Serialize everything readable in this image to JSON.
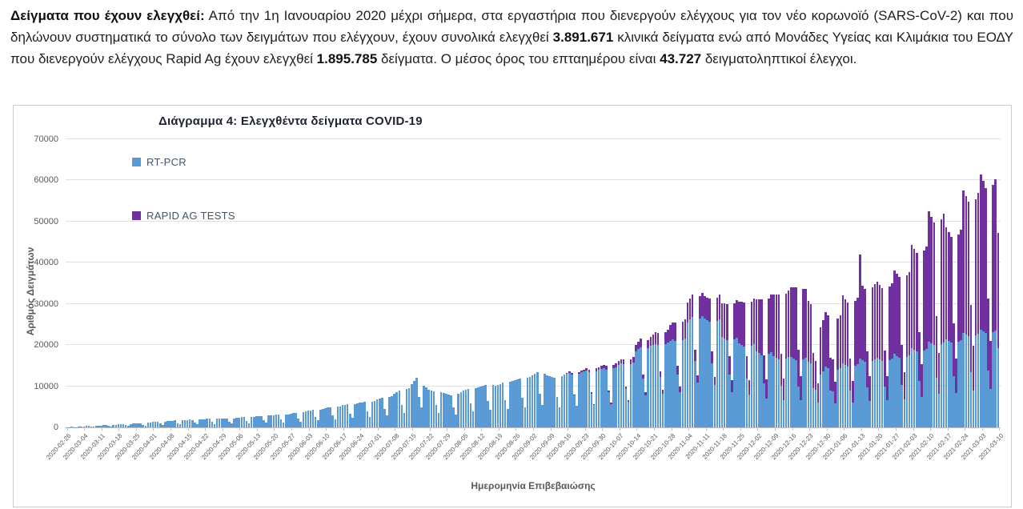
{
  "intro": {
    "lead_bold": "Δείγματα που έχουν ελεγχθεί:",
    "part1": " Από την 1η Ιανουαρίου 2020 μέχρι σήμερα, στα εργαστήρια που διενεργούν ελέγχους για τον νέο κορωνοϊό (SARS-CoV-2) και που δηλώνουν συστηματικά το σύνολο των δειγμάτων που ελέγχουν, έχουν συνολικά ελεγχθεί ",
    "total_rt_pcr": "3.891.671",
    "part2": " κλινικά δείγματα ενώ από Μονάδες Υγείας και Κλιμάκια του ΕΟΔΥ που διενεργούν ελέγχους Rapid Ag έχουν ελεγχθεί ",
    "total_rapid": "1.895.785",
    "part3": " δείγματα. Ο μέσος όρος του επταημέρου είναι ",
    "avg_7day": "43.727",
    "part4": " δειγματοληπτικοί έλεγχοι."
  },
  "chart_data": {
    "type": "bar",
    "stacked": true,
    "bar_period": "daily",
    "title": "Διάγραμμα 4: Ελεγχθέντα δείγματα COVID-19",
    "xlabel": "Ημερομηνία Επιβεβαιώσης",
    "ylabel": "Αριθμός Δειγμάτων",
    "ylim": [
      0,
      70000
    ],
    "y_ticks": [
      0,
      10000,
      20000,
      30000,
      40000,
      50000,
      60000,
      70000
    ],
    "grid": "horizontal",
    "legend_position": "inside-top-left",
    "x_range": [
      "2020-02-26",
      "2021-03-10"
    ],
    "x_tick_labels": [
      "2020-02-26",
      "2020-03-04",
      "2020-03-11",
      "2020-03-18",
      "2020-03-25",
      "2020-04-01",
      "2020-04-08",
      "2020-04-15",
      "2020-04-22",
      "2020-04-29",
      "2020-05-06",
      "2020-05-13",
      "2020-05-20",
      "2020-05-27",
      "2020-06-03",
      "2020-06-10",
      "2020-06-17",
      "2020-06-24",
      "2020-07-01",
      "2020-07-08",
      "2020-07-15",
      "2020-07-22",
      "2020-07-29",
      "2020-08-05",
      "2020-08-12",
      "2020-08-19",
      "2020-08-26",
      "2020-09-02",
      "2020-09-09",
      "2020-09-16",
      "2020-09-23",
      "2020-09-30",
      "2020-10-07",
      "2020-10-14",
      "2020-10-21",
      "2020-10-28",
      "2020-11-04",
      "2020-11-11",
      "2020-11-18",
      "2020-11-25",
      "2020-12-02",
      "2020-12-09",
      "2020-12-16",
      "2020-12-23",
      "2020-12-30",
      "2021-01-06",
      "2021-01-13",
      "2021-01-20",
      "2021-01-27",
      "2021-02-03",
      "2021-02-10",
      "2021-02-17",
      "2021-02-24",
      "2021-03-03",
      "2021-03-10"
    ],
    "colors": {
      "rt_pcr": "#5B9BD5",
      "rapid": "#7030A0"
    },
    "series": [
      {
        "name": "RT-PCR",
        "color": "#5B9BD5",
        "values": [
          60,
          80,
          120,
          90,
          70,
          150,
          200,
          250,
          300,
          350,
          220,
          160,
          380,
          420,
          450,
          500,
          550,
          350,
          250,
          600,
          650,
          700,
          750,
          800,
          500,
          350,
          850,
          900,
          950,
          1000,
          1050,
          650,
          450,
          1100,
          1150,
          1300,
          1350,
          1400,
          900,
          600,
          1450,
          1500,
          1600,
          1650,
          1700,
          1050,
          700,
          1750,
          1800,
          1850,
          1900,
          1800,
          1100,
          750,
          1900,
          1950,
          2000,
          2050,
          2100,
          1300,
          850,
          2100,
          2150,
          2100,
          2150,
          2200,
          1350,
          900,
          2200,
          2250,
          2400,
          2450,
          2500,
          1550,
          1000,
          2550,
          2600,
          2700,
          2750,
          2800,
          1700,
          1150,
          2850,
          2900,
          3000,
          3050,
          3100,
          1900,
          1250,
          3150,
          3200,
          3400,
          3500,
          3600,
          2200,
          1450,
          3700,
          3800,
          4000,
          4100,
          4200,
          2600,
          1700,
          4300,
          4400,
          4700,
          4800,
          4900,
          3000,
          2000,
          5000,
          5100,
          5400,
          5500,
          5600,
          3400,
          2300,
          5700,
          5800,
          6000,
          6100,
          6200,
          3800,
          2500,
          6300,
          6400,
          6800,
          7000,
          7200,
          4400,
          2900,
          7400,
          7600,
          8200,
          8600,
          9000,
          5500,
          3600,
          9300,
          9600,
          10500,
          11200,
          12100,
          7400,
          4900,
          10200,
          9800,
          9200,
          9000,
          8800,
          5400,
          3600,
          8600,
          8400,
          8200,
          8000,
          7800,
          4800,
          3200,
          8200,
          8600,
          9000,
          9200,
          9400,
          5800,
          3800,
          9600,
          9800,
          10000,
          10200,
          10400,
          6400,
          4200,
          10300,
          10200,
          10400,
          10600,
          10800,
          6600,
          4400,
          11000,
          11200,
          11400,
          11600,
          11800,
          7200,
          4800,
          12000,
          12200,
          12600,
          13000,
          13400,
          8200,
          5400,
          13000,
          12600,
          12400,
          12200,
          12000,
          7400,
          4900,
          12400,
          12800,
          13000,
          13200,
          12800,
          7800,
          5200,
          13000,
          13400,
          13600,
          13800,
          13500,
          8200,
          5400,
          13700,
          14000,
          14200,
          14400,
          14100,
          8600,
          5700,
          14300,
          14600,
          15200,
          15500,
          15300,
          9300,
          6200,
          15400,
          15800,
          18500,
          19000,
          19500,
          11800,
          7800,
          19200,
          19800,
          20000,
          20300,
          20000,
          12200,
          8100,
          20200,
          20600,
          21000,
          21300,
          21000,
          12800,
          8500,
          21200,
          21600,
          25500,
          26200,
          26800,
          16200,
          10800,
          26400,
          27000,
          26400,
          26000,
          25600,
          15600,
          10400,
          25800,
          26200,
          22000,
          21600,
          21200,
          12900,
          8600,
          21400,
          21800,
          20400,
          20000,
          19600,
          11900,
          7900,
          19800,
          20200,
          18400,
          18000,
          17600,
          10700,
          7100,
          17800,
          18200,
          17400,
          17000,
          16600,
          10100,
          6700,
          16800,
          17200,
          17200,
          16800,
          16400,
          10000,
          6600,
          16600,
          17000,
          16000,
          15600,
          9500,
          9200,
          6100,
          12800,
          13600,
          14800,
          14400,
          9000,
          8800,
          5900,
          14000,
          14400,
          15600,
          15200,
          14800,
          9000,
          6000,
          15000,
          15400,
          16800,
          16400,
          16000,
          9700,
          6500,
          16200,
          16600,
          17000,
          16600,
          16200,
          9900,
          6600,
          16400,
          16800,
          17800,
          17400,
          17000,
          10300,
          6900,
          17200,
          17600,
          19200,
          18800,
          18400,
          11200,
          7400,
          18600,
          19000,
          20800,
          20400,
          20000,
          12100,
          8100,
          20200,
          20600,
          21400,
          21000,
          20600,
          12500,
          8300,
          20800,
          21200,
          23000,
          22600,
          22200,
          13500,
          9000,
          22400,
          22800,
          23800,
          23400,
          23000,
          13900,
          9300,
          23200,
          23600,
          19300
        ]
      },
      {
        "name": "RAPID AG TESTS",
        "color": "#7030A0",
        "values": [
          0,
          0,
          0,
          0,
          0,
          0,
          0,
          0,
          0,
          0,
          0,
          0,
          0,
          0,
          0,
          0,
          0,
          0,
          0,
          0,
          0,
          0,
          0,
          0,
          0,
          0,
          0,
          0,
          0,
          0,
          0,
          0,
          0,
          0,
          0,
          0,
          0,
          0,
          0,
          0,
          0,
          0,
          0,
          0,
          0,
          0,
          0,
          0,
          0,
          0,
          0,
          0,
          0,
          0,
          0,
          0,
          0,
          0,
          0,
          0,
          0,
          0,
          0,
          0,
          0,
          0,
          0,
          0,
          0,
          0,
          0,
          0,
          0,
          0,
          0,
          0,
          0,
          0,
          0,
          0,
          0,
          0,
          0,
          0,
          0,
          0,
          0,
          0,
          0,
          0,
          0,
          0,
          0,
          0,
          0,
          0,
          0,
          0,
          0,
          0,
          0,
          0,
          0,
          0,
          0,
          0,
          0,
          0,
          0,
          0,
          0,
          0,
          0,
          0,
          0,
          0,
          0,
          0,
          0,
          0,
          0,
          0,
          0,
          0,
          0,
          0,
          0,
          0,
          0,
          0,
          0,
          0,
          0,
          0,
          0,
          0,
          0,
          0,
          0,
          0,
          0,
          0,
          0,
          0,
          0,
          0,
          0,
          0,
          0,
          0,
          0,
          0,
          0,
          0,
          0,
          0,
          0,
          0,
          0,
          0,
          0,
          0,
          0,
          0,
          0,
          0,
          0,
          0,
          0,
          0,
          0,
          0,
          0,
          0,
          0,
          0,
          0,
          0,
          0,
          0,
          0,
          0,
          0,
          0,
          0,
          0,
          0,
          0,
          0,
          0,
          0,
          0,
          0,
          0,
          0,
          0,
          0,
          0,
          0,
          0,
          0,
          0,
          0,
          300,
          350,
          400,
          200,
          150,
          400,
          450,
          500,
          550,
          600,
          300,
          200,
          600,
          650,
          700,
          750,
          800,
          400,
          300,
          800,
          900,
          1000,
          1100,
          1200,
          600,
          400,
          1200,
          1400,
          1600,
          1800,
          2000,
          1000,
          700,
          2000,
          2200,
          2600,
          2800,
          3000,
          1500,
          1000,
          3000,
          3200,
          3800,
          4100,
          4400,
          2200,
          1500,
          4400,
          4700,
          4800,
          5100,
          5400,
          2700,
          1800,
          5400,
          5700,
          5400,
          5600,
          5800,
          2900,
          1900,
          5800,
          6000,
          8200,
          8500,
          8800,
          4400,
          2900,
          8800,
          9100,
          10200,
          10500,
          10800,
          5400,
          3600,
          10800,
          11100,
          12800,
          13200,
          13600,
          6800,
          4500,
          13600,
          14000,
          14800,
          15200,
          15600,
          7800,
          5200,
          15600,
          16000,
          16800,
          17200,
          17600,
          8800,
          5800,
          17000,
          16600,
          14800,
          14400,
          8600,
          7000,
          4600,
          11600,
          12400,
          13200,
          12800,
          8000,
          7800,
          5200,
          12400,
          12800,
          16400,
          16000,
          15600,
          7800,
          5200,
          15800,
          16200,
          25200,
          18000,
          17600,
          8800,
          5900,
          17800,
          18200,
          18400,
          18000,
          17600,
          8800,
          5900,
          17800,
          18200,
          20400,
          20000,
          19600,
          9800,
          6500,
          19800,
          20200,
          25200,
          24600,
          24000,
          12000,
          8000,
          24300,
          24900,
          31800,
          30800,
          29800,
          14900,
          9900,
          30300,
          31300,
          27200,
          26400,
          25600,
          12800,
          8500,
          26000,
          26800,
          34600,
          33600,
          32600,
          16300,
          10800,
          33100,
          34100,
          37700,
          36400,
          35100,
          17500,
          11700,
          35700,
          36700,
          27900
        ]
      }
    ]
  }
}
